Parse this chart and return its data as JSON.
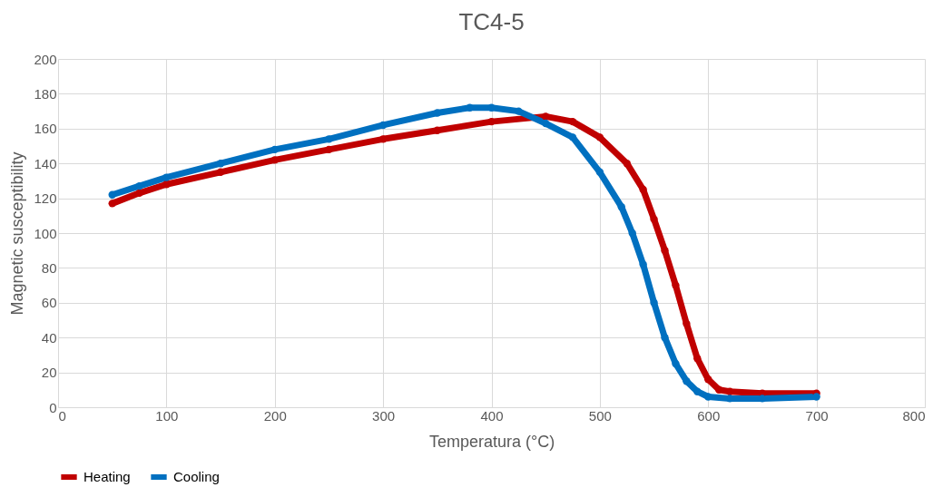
{
  "chart_data": {
    "type": "line",
    "title": "TC4-5",
    "xlabel": "Temperatura (°C)",
    "ylabel": "Magnetic susceptibility",
    "xlim": [
      0,
      800
    ],
    "xticks": [
      0,
      100,
      200,
      300,
      400,
      500,
      600,
      700,
      800
    ],
    "ylim": [
      0,
      200
    ],
    "yticks": [
      0,
      20,
      40,
      60,
      80,
      100,
      120,
      140,
      160,
      180,
      200
    ],
    "grid": true,
    "legend": "bottom",
    "marker": "circle",
    "line_style": "solid",
    "series": [
      {
        "name": "Heating",
        "color": "#c00000",
        "x": [
          50,
          75,
          100,
          150,
          200,
          250,
          300,
          350,
          400,
          450,
          475,
          500,
          525,
          540,
          550,
          560,
          570,
          580,
          590,
          600,
          610,
          620,
          650,
          700
        ],
        "values": [
          117,
          123,
          128,
          135,
          142,
          148,
          154,
          159,
          164,
          167,
          164,
          155,
          140,
          125,
          108,
          90,
          70,
          48,
          28,
          16,
          10,
          9,
          8,
          8
        ]
      },
      {
        "name": "Cooling",
        "color": "#0070c0",
        "x": [
          50,
          75,
          100,
          150,
          200,
          250,
          300,
          350,
          380,
          400,
          425,
          450,
          475,
          500,
          520,
          530,
          540,
          550,
          560,
          570,
          580,
          590,
          600,
          620,
          650,
          700
        ],
        "values": [
          122,
          127,
          132,
          140,
          148,
          154,
          162,
          169,
          172,
          172,
          170,
          163,
          155,
          135,
          115,
          100,
          82,
          60,
          40,
          25,
          15,
          9,
          6,
          5,
          5,
          6
        ]
      }
    ]
  }
}
